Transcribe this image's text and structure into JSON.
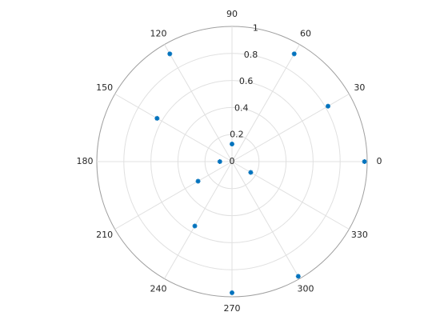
{
  "chart_data": {
    "type": "scatter",
    "coordinates": "polar",
    "angle_unit": "degrees",
    "x": [
      0,
      30,
      60,
      90,
      120,
      150,
      180,
      210,
      240,
      270,
      300,
      330
    ],
    "values": [
      0.98,
      0.82,
      0.92,
      0.13,
      0.92,
      0.64,
      0.09,
      0.29,
      0.55,
      0.97,
      0.98,
      0.16
    ],
    "color": "#0072bd",
    "marker": "*",
    "xticks": [
      0,
      30,
      60,
      90,
      120,
      150,
      180,
      210,
      240,
      270,
      300,
      330
    ],
    "ylim": [
      0,
      1
    ],
    "yticks": [
      0,
      0.2,
      0.4,
      0.6,
      0.8,
      1
    ],
    "grid": true
  }
}
